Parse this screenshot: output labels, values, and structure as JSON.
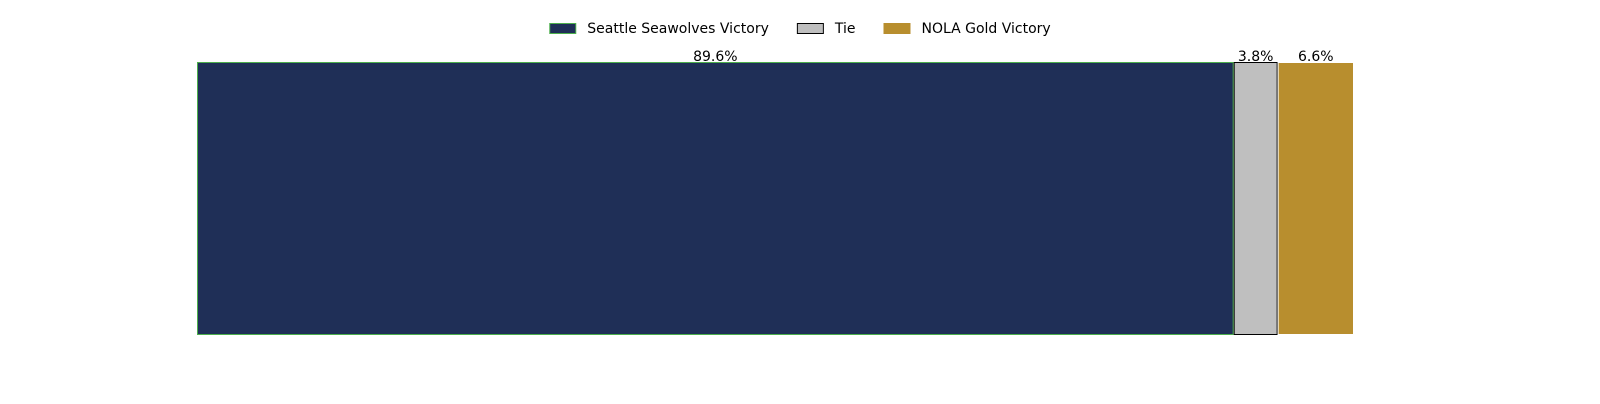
{
  "chart_data": {
    "type": "bar",
    "orientation": "horizontal",
    "stacked": true,
    "title": "",
    "xlabel": "",
    "ylabel": "",
    "xlim": [
      0,
      100
    ],
    "axes_visible": false,
    "grid": false,
    "legend_position": "top-center",
    "categories": [
      ""
    ],
    "series": [
      {
        "name": "Seattle Seawolves Victory",
        "values": [
          89.6
        ],
        "label": "89.6%",
        "color": "#1f2f57",
        "edge_color": "#4cae4c"
      },
      {
        "name": "Tie",
        "values": [
          3.8
        ],
        "label": "3.8%",
        "color": "#bfbfbf",
        "edge_color": "#000000"
      },
      {
        "name": "NOLA Gold Victory",
        "values": [
          6.6
        ],
        "label": "6.6%",
        "color": "#b88e2e",
        "edge_color": "#ffffff"
      }
    ]
  }
}
